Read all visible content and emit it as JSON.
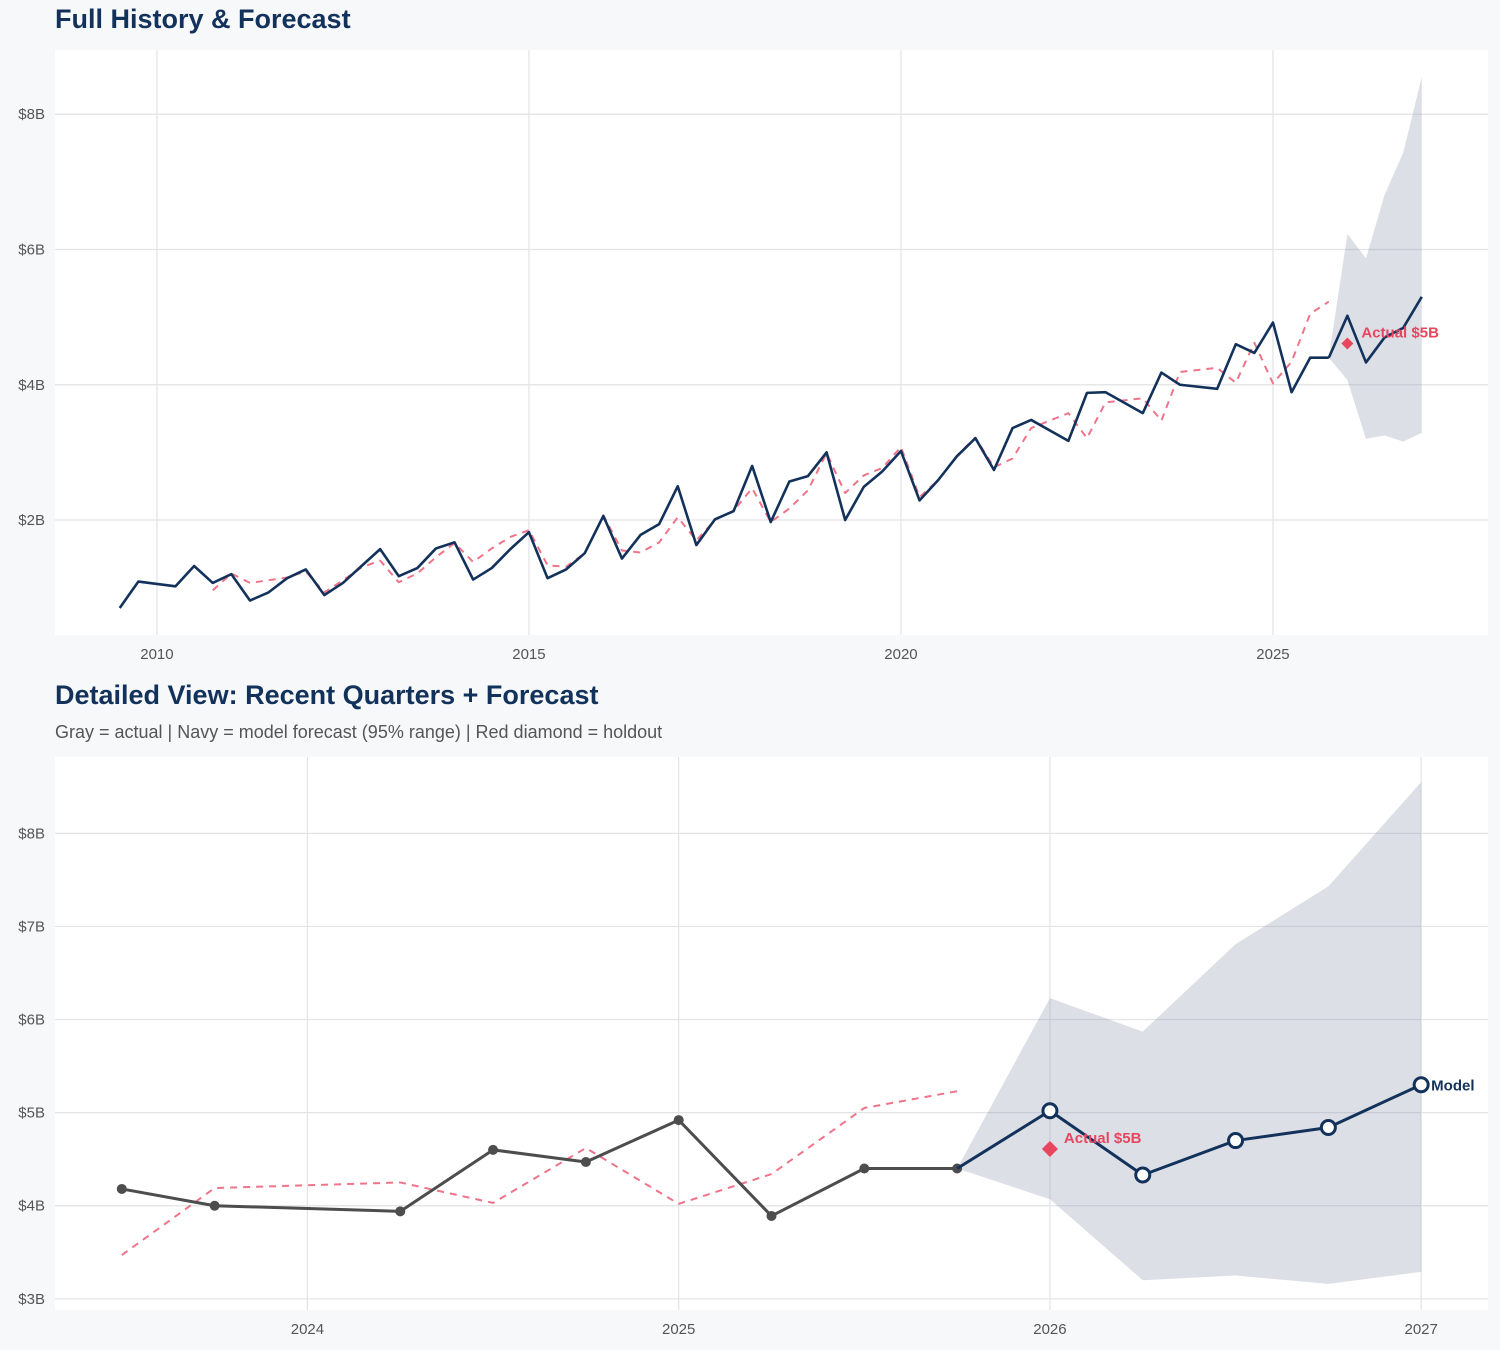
{
  "colors": {
    "navy": "#13325b",
    "actual_gray": "#4d4d4d",
    "fitted_red": "#ef7489",
    "holdout_red": "#e8455f",
    "band": "#dce0e6",
    "background": "#f7f8fa"
  },
  "chart_data": [
    {
      "type": "line",
      "title": "Full History & Forecast",
      "xlim": [
        2008.63,
        2027.89
      ],
      "ylim": [
        0.3,
        8.95
      ],
      "x_ticks": [
        2010,
        2015,
        2020,
        2025
      ],
      "x_tick_labels": [
        "2010",
        "2015",
        "2020",
        "2025"
      ],
      "y_ticks": [
        2,
        4,
        6,
        8
      ],
      "y_tick_labels": [
        "$2B",
        "$4B",
        "$6B",
        "$8B"
      ],
      "grid": true,
      "series": [
        {
          "key": "actual",
          "style": "navy solid",
          "x": [
            2009.5,
            2009.75,
            2010.25,
            2010.5,
            2010.75,
            2011.0,
            2011.25,
            2011.5,
            2011.75,
            2012.0,
            2012.25,
            2012.5,
            2012.75,
            2013.0,
            2013.25,
            2013.5,
            2013.75,
            2014.0,
            2014.25,
            2014.5,
            2014.75,
            2015.0,
            2015.25,
            2015.5,
            2015.75,
            2016.0,
            2016.25,
            2016.5,
            2016.75,
            2017.0,
            2017.25,
            2017.5,
            2017.75,
            2018.0,
            2018.25,
            2018.5,
            2018.75,
            2019.0,
            2019.25,
            2019.5,
            2019.75,
            2020.0,
            2020.25,
            2020.5,
            2020.75,
            2021.0,
            2021.25,
            2021.5,
            2021.75,
            2022.25,
            2022.5,
            2022.75,
            2023.25,
            2023.5,
            2023.75,
            2024.25,
            2024.5,
            2024.75,
            2025.0,
            2025.25,
            2025.5,
            2025.75
          ],
          "y": [
            0.7,
            1.09,
            1.02,
            1.32,
            1.07,
            1.2,
            0.81,
            0.93,
            1.14,
            1.27,
            0.89,
            1.07,
            1.32,
            1.57,
            1.17,
            1.29,
            1.58,
            1.67,
            1.12,
            1.29,
            1.57,
            1.82,
            1.14,
            1.27,
            1.51,
            2.06,
            1.43,
            1.78,
            1.94,
            2.5,
            1.63,
            2.01,
            2.13,
            2.8,
            1.97,
            2.57,
            2.65,
            3.0,
            2.0,
            2.49,
            2.72,
            3.02,
            2.29,
            2.59,
            2.94,
            3.21,
            2.74,
            3.36,
            3.48,
            3.17,
            3.88,
            3.89,
            3.58,
            4.18,
            4.0,
            3.94,
            4.6,
            4.47,
            4.92,
            3.89,
            4.4,
            4.4
          ]
        },
        {
          "key": "fitted",
          "style": "red dashed",
          "x": [
            2010.75,
            2011.0,
            2011.25,
            2011.5,
            2011.75,
            2012.0,
            2012.25,
            2012.5,
            2012.75,
            2013.0,
            2013.25,
            2013.5,
            2013.75,
            2014.0,
            2014.25,
            2014.5,
            2014.75,
            2015.0,
            2015.25,
            2015.5,
            2015.75,
            2016.0,
            2016.25,
            2016.5,
            2016.75,
            2017.0,
            2017.25,
            2017.5,
            2017.75,
            2018.0,
            2018.25,
            2018.5,
            2018.75,
            2019.0,
            2019.25,
            2019.5,
            2019.75,
            2020.0,
            2020.25,
            2020.5,
            2020.75,
            2021.0,
            2021.25,
            2021.5,
            2021.75,
            2022.25,
            2022.5,
            2022.75,
            2023.25,
            2023.5,
            2023.75,
            2024.25,
            2024.5,
            2024.75,
            2025.0,
            2025.25,
            2025.5,
            2025.75
          ],
          "y": [
            0.96,
            1.21,
            1.07,
            1.11,
            1.15,
            1.24,
            0.93,
            1.11,
            1.3,
            1.4,
            1.08,
            1.21,
            1.45,
            1.66,
            1.38,
            1.58,
            1.75,
            1.85,
            1.33,
            1.31,
            1.51,
            2.07,
            1.55,
            1.52,
            1.67,
            2.04,
            1.7,
            2.0,
            2.14,
            2.47,
            1.97,
            2.17,
            2.44,
            2.99,
            2.4,
            2.66,
            2.77,
            3.08,
            2.34,
            2.59,
            2.95,
            3.22,
            2.78,
            2.91,
            3.36,
            3.58,
            3.21,
            3.74,
            3.8,
            3.47,
            4.19,
            4.25,
            4.03,
            4.62,
            4.02,
            4.34,
            5.05,
            5.23
          ]
        },
        {
          "key": "forecast",
          "style": "navy solid",
          "x": [
            2025.75,
            2026.0,
            2026.25,
            2026.5,
            2026.75,
            2027.0
          ],
          "y": [
            4.4,
            5.02,
            4.33,
            4.7,
            4.84,
            5.3
          ]
        },
        {
          "key": "forecast_band_95",
          "x": [
            2025.75,
            2026.0,
            2026.25,
            2026.5,
            2026.75,
            2027.0
          ],
          "upper": [
            4.4,
            6.23,
            5.87,
            6.81,
            7.43,
            8.55
          ],
          "lower": [
            4.4,
            4.07,
            3.2,
            3.25,
            3.16,
            3.29
          ]
        }
      ],
      "holdout": {
        "x": 2026.0,
        "y": 4.61,
        "label": "Actual $5B"
      }
    },
    {
      "type": "line",
      "title": "Detailed View: Recent Quarters + Forecast",
      "subtitle": "Gray = actual  |  Navy = model forecast (95% range)  |  Red diamond = holdout",
      "xlim": [
        2023.32,
        2027.18
      ],
      "ylim": [
        2.88,
        8.82
      ],
      "x_ticks": [
        2024,
        2025,
        2026,
        2027
      ],
      "x_tick_labels": [
        "2024",
        "2025",
        "2026",
        "2027"
      ],
      "y_ticks": [
        3,
        4,
        5,
        6,
        7,
        8
      ],
      "y_tick_labels": [
        "$3B",
        "$4B",
        "$5B",
        "$6B",
        "$7B",
        "$8B"
      ],
      "grid": true,
      "series": [
        {
          "key": "actual",
          "style": "gray solid with dots",
          "x": [
            2023.5,
            2023.75,
            2024.25,
            2024.5,
            2024.75,
            2025.0,
            2025.25,
            2025.5,
            2025.75
          ],
          "y": [
            4.18,
            4.0,
            3.94,
            4.6,
            4.47,
            4.92,
            3.89,
            4.4,
            4.4
          ]
        },
        {
          "key": "fitted",
          "style": "red dashed",
          "x": [
            2023.5,
            2023.75,
            2024.25,
            2024.5,
            2024.75,
            2025.0,
            2025.25,
            2025.5,
            2025.75
          ],
          "y": [
            3.47,
            4.19,
            4.25,
            4.03,
            4.62,
            4.02,
            4.34,
            5.05,
            5.23
          ]
        },
        {
          "key": "forecast",
          "style": "navy solid with open circles",
          "x": [
            2025.75,
            2026.0,
            2026.25,
            2026.5,
            2026.75,
            2027.0
          ],
          "y": [
            4.4,
            5.02,
            4.33,
            4.7,
            4.84,
            5.3
          ],
          "end_label": "Model"
        },
        {
          "key": "forecast_band_95",
          "x": [
            2025.75,
            2026.0,
            2026.25,
            2026.5,
            2026.75,
            2027.0
          ],
          "upper": [
            4.4,
            6.23,
            5.87,
            6.81,
            7.43,
            8.55
          ],
          "lower": [
            4.4,
            4.07,
            3.2,
            3.25,
            3.16,
            3.29
          ]
        }
      ],
      "holdout": {
        "x": 2026.0,
        "y": 4.61,
        "label": "Actual $5B"
      }
    }
  ]
}
